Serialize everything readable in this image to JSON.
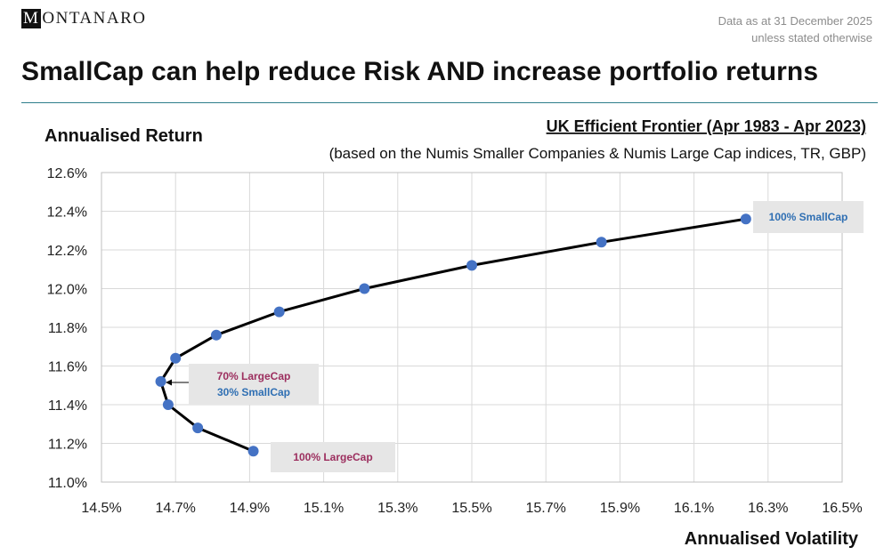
{
  "header": {
    "logo_box_letter": "M",
    "logo_rest": "ONTANARO",
    "asof_line1": "Data as at 31 December 2025",
    "asof_line2": "unless stated otherwise",
    "title": "SmallCap can help reduce Risk AND increase portfolio returns"
  },
  "chart_data": {
    "type": "line",
    "title": "UK Efficient Frontier (Apr 1983 - Apr 2023)",
    "subtitle": "(based on the Numis Smaller Companies & Numis Large Cap indices, TR, GBP)",
    "xlabel": "Annualised Volatility",
    "ylabel": "Annualised Return",
    "xlim": [
      14.5,
      16.5
    ],
    "ylim": [
      11.0,
      12.6
    ],
    "x_ticks": [
      14.5,
      14.7,
      14.9,
      15.1,
      15.3,
      15.5,
      15.7,
      15.9,
      16.1,
      16.3,
      16.5
    ],
    "x_tick_labels": [
      "14.5%",
      "14.7%",
      "14.9%",
      "15.1%",
      "15.3%",
      "15.5%",
      "15.7%",
      "15.9%",
      "16.1%",
      "16.3%",
      "16.5%"
    ],
    "y_ticks": [
      11.0,
      11.2,
      11.4,
      11.6,
      11.8,
      12.0,
      12.2,
      12.4,
      12.6
    ],
    "y_tick_labels": [
      "11.0%",
      "11.2%",
      "11.4%",
      "11.6%",
      "11.8%",
      "12.0%",
      "12.2%",
      "12.4%",
      "12.6%"
    ],
    "grid": true,
    "series": [
      {
        "name": "Efficient Frontier",
        "line_color": "#000000",
        "marker_color": "#4472c4",
        "points": [
          {
            "x": 14.91,
            "y": 11.16
          },
          {
            "x": 14.76,
            "y": 11.28
          },
          {
            "x": 14.68,
            "y": 11.4
          },
          {
            "x": 14.66,
            "y": 11.52
          },
          {
            "x": 14.7,
            "y": 11.64
          },
          {
            "x": 14.81,
            "y": 11.76
          },
          {
            "x": 14.98,
            "y": 11.88
          },
          {
            "x": 15.21,
            "y": 12.0
          },
          {
            "x": 15.5,
            "y": 12.12
          },
          {
            "x": 15.85,
            "y": 12.24
          },
          {
            "x": 16.24,
            "y": 12.36
          }
        ]
      }
    ],
    "annotations": {
      "smallcap_100": "100% SmallCap",
      "mix_line1": "70% LargeCap",
      "mix_line2": "30% SmallCap",
      "largecap_100": "100% LargeCap"
    }
  }
}
